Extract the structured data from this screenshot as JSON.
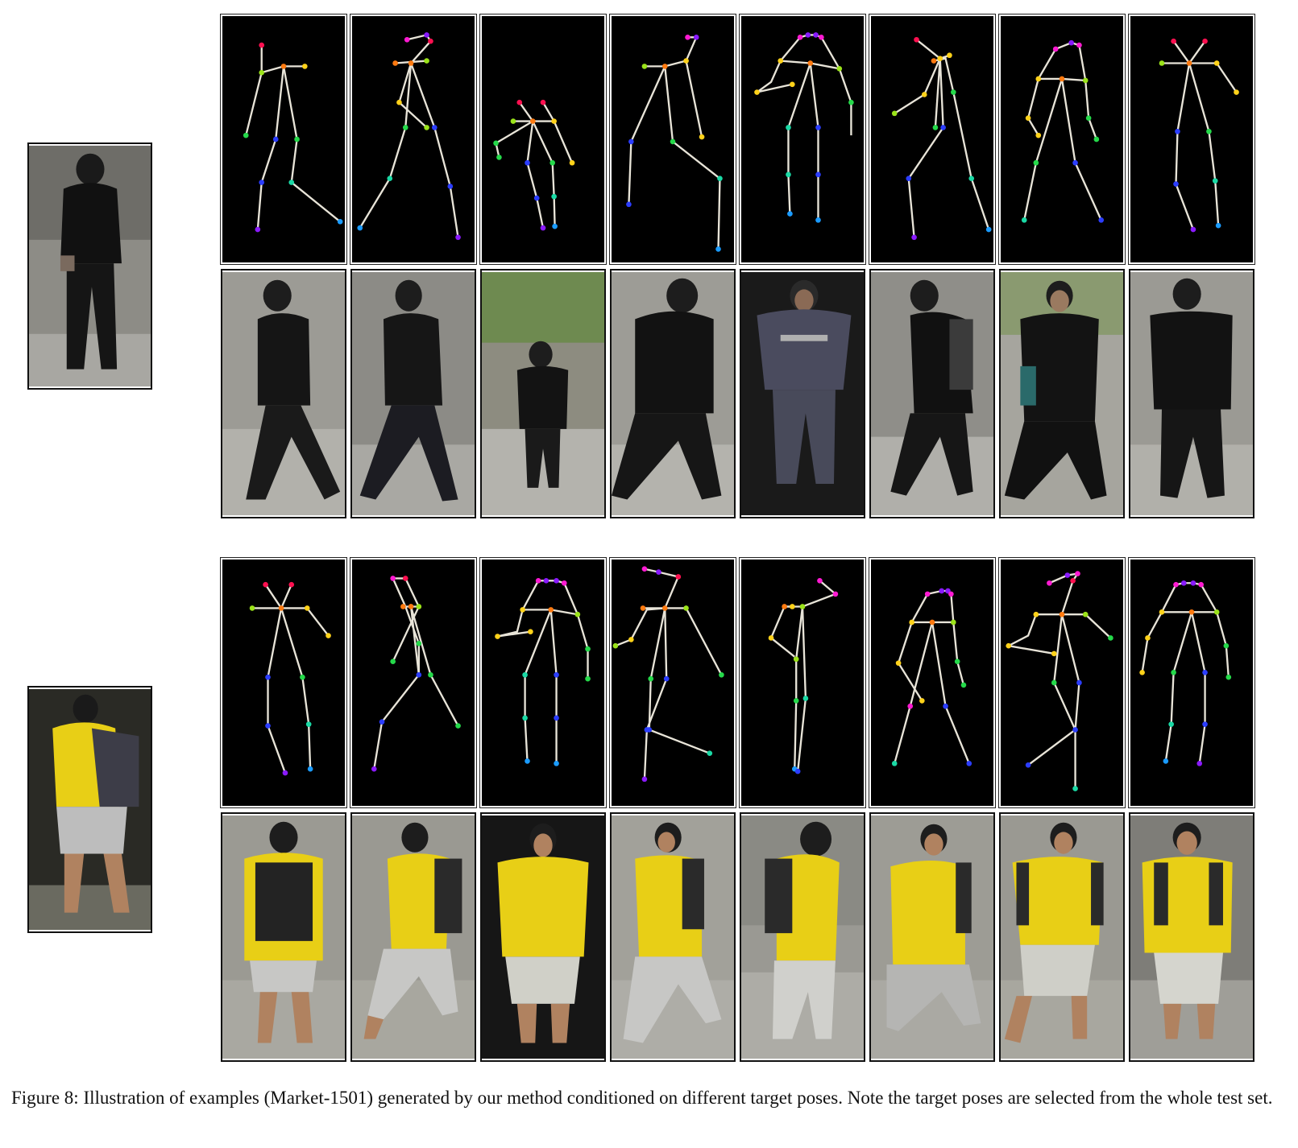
{
  "figure": {
    "caption": "Figure 8: Illustration of examples (Market-1501) generated by our method conditioned on different target poses. Note the target poses are selected from the whole test set."
  },
  "groups": [
    {
      "source": {
        "shirt": "#141414",
        "pants": "#1c1c1c",
        "skin": "#8a6a55",
        "bg": "#8e8e8a"
      },
      "columns": 8
    },
    {
      "source": {
        "shirt": "#e8cf16",
        "pants": "#bdbdbd",
        "skin": "#b08260",
        "bg": "#3a3a30",
        "bag": "#3d3d48"
      },
      "columns": 8
    }
  ],
  "colors": {
    "limb": "#e8e4d8",
    "joints": [
      "#ff1050",
      "#ff7a10",
      "#ffd21a",
      "#9be31a",
      "#25d94a",
      "#1ad9a5",
      "#1a9bff",
      "#2b3dff",
      "#8a1aff",
      "#ff1ad2"
    ]
  }
}
